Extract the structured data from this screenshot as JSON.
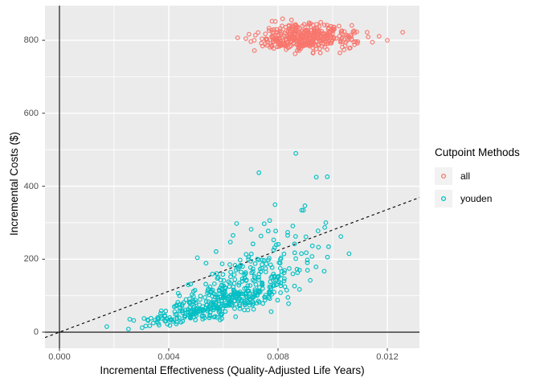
{
  "colors": {
    "background": "#FFFFFF",
    "panel_bg": "#EBEBEB",
    "grid": "#FFFFFF",
    "tick_mark": "#333333",
    "tick_label": "#4D4D4D",
    "axis_title": "#000000",
    "legend_key_bg": "#F2F2F2",
    "reference_line": "#000000"
  },
  "legend": {
    "title": "Cutpoint Methods",
    "items": [
      {
        "label": "all",
        "color": "#F8766D"
      },
      {
        "label": "youden",
        "color": "#00BFC4"
      }
    ]
  },
  "chart_data": {
    "type": "scatter",
    "title": "",
    "xlabel": "Incremental Effectiveness (Quality-Adjusted Life Years)",
    "ylabel": "Incremental Costs ($)",
    "legend_position": "right",
    "grid": true,
    "x_axis": {
      "tick_labels": [
        "0.000",
        "0.004",
        "0.008",
        "0.012"
      ],
      "tick_values": [
        0,
        0.004,
        0.008,
        0.012
      ],
      "minor_values": [
        0.002,
        0.006,
        0.01
      ],
      "range": [
        -0.000529,
        0.013176
      ]
    },
    "y_axis": {
      "tick_labels": [
        "0",
        "200",
        "400",
        "600",
        "800"
      ],
      "tick_values": [
        0,
        200,
        400,
        600,
        800
      ],
      "minor_values": [
        100,
        300,
        500,
        700
      ],
      "range": [
        -44,
        895
      ]
    },
    "series": [
      {
        "name": "all",
        "color": "#F8766D",
        "marker": "open-circle",
        "n": 400,
        "model": "gaussian",
        "seed": 42,
        "x_mean": 0.009,
        "x_sd": 0.00085,
        "x_clip": [
          0.0063,
          0.0127
        ],
        "y_mean": 806,
        "y_sd": 19,
        "y_clip": [
          745,
          866
        ],
        "extra_points": [
          [
            0.01126,
            822
          ],
          [
            0.0117,
            811
          ],
          [
            0.012,
            800
          ],
          [
            0.01256,
            822
          ],
          [
            0.0108,
            788
          ]
        ]
      },
      {
        "name": "youden",
        "color": "#00BFC4",
        "marker": "open-circle",
        "n": 500,
        "model": "quadratic_funnel",
        "seed": 7,
        "x_mean": 0.0063,
        "x_sd": 0.00145,
        "x_clip": [
          0.0012,
          0.0104
        ],
        "curve_a": 2600000,
        "log_sd": 0.33,
        "abs_noise": 8,
        "y_clip": [
          3,
          495
        ],
        "extra_points": [
          [
            0.0106,
            215
          ],
          [
            0.00865,
            490
          ],
          [
            0.0073,
            437
          ],
          [
            0.0094,
            425
          ],
          [
            0.00975,
            300
          ]
        ]
      }
    ],
    "reference_lines": [
      {
        "kind": "abline",
        "slope": 28000,
        "intercept": 0,
        "dashed": true
      },
      {
        "kind": "hline",
        "y": 0,
        "dashed": false
      },
      {
        "kind": "vline",
        "x": 0,
        "dashed": false
      }
    ]
  }
}
